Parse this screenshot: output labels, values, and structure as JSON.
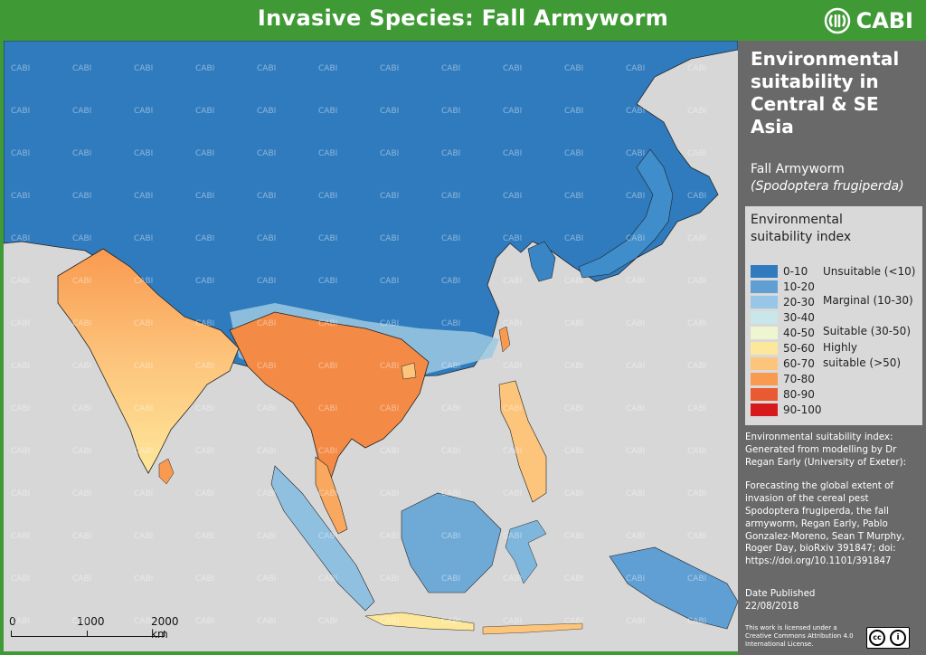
{
  "header": {
    "title": "Invasive Species: Fall Armyworm",
    "brand": "CABI"
  },
  "panel": {
    "title": "Environmental suitability in Central & SE Asia",
    "common_name": "Fall Armyworm",
    "scientific_name": "(Spodoptera frugiperda)"
  },
  "legend": {
    "title": "Environmental suitability index",
    "classes": [
      {
        "range": "0-10",
        "color": "#2f7bbe"
      },
      {
        "range": "10-20",
        "color": "#5f9fd3"
      },
      {
        "range": "20-30",
        "color": "#97c6e6"
      },
      {
        "range": "30-40",
        "color": "#c9e6e9"
      },
      {
        "range": "40-50",
        "color": "#eef6d0"
      },
      {
        "range": "50-60",
        "color": "#fde79a"
      },
      {
        "range": "60-70",
        "color": "#fdc47c"
      },
      {
        "range": "70-80",
        "color": "#f99a50"
      },
      {
        "range": "80-90",
        "color": "#ea5a32"
      },
      {
        "range": "90-100",
        "color": "#d7191c"
      }
    ],
    "categories": {
      "unsuitable": "Unsuitable (<10)",
      "marginal": "Marginal (10-30)",
      "suitable": "Suitable (30-50)",
      "highly_line1": "Highly",
      "highly_line2": "suitable (>50)"
    }
  },
  "description": {
    "line1": "Environmental suitability index:",
    "line2": "Generated from modelling by Dr",
    "line3": "Regan Early (University of Exeter):",
    "ref1": "Forecasting the global extent of",
    "ref2": "invasion of the cereal pest",
    "ref3": "Spodoptera frugiperda, the fall",
    "ref4": "armyworm, Regan Early, Pablo",
    "ref5": "Gonzalez-Moreno, Sean T Murphy,",
    "ref6": "Roger Day, bioRxiv 391847; doi:",
    "ref7": "https://doi.org/10.1101/391847"
  },
  "published": {
    "label": "Date Published",
    "date": "22/08/2018"
  },
  "license": {
    "line1": "This work is licensed under a",
    "line2": "Creative Commons Attribution 4.0",
    "line3": "International License."
  },
  "scale_bar": {
    "tick0": "0",
    "tick1": "1000",
    "tick2": "2000 km"
  },
  "watermark": "CABI",
  "colors": {
    "brand_green": "#3f9a35",
    "panel_grey": "#696969",
    "sea": "#d7d7d7",
    "unsuitable_blue": "#2f7bbe"
  }
}
